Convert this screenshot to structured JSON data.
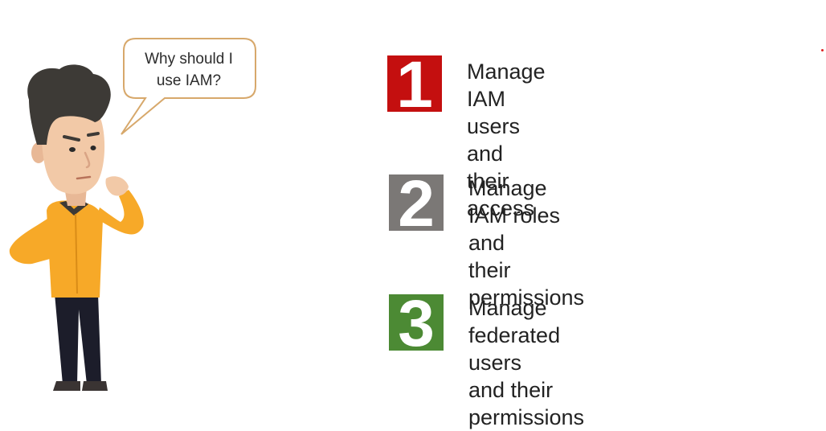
{
  "speech_bubble": {
    "line1": "Why should I",
    "line2": "use IAM?"
  },
  "items": [
    {
      "number": "1",
      "color": "#c40f0f",
      "line1": "Manage IAM users and",
      "line2": "their access"
    },
    {
      "number": "2",
      "color": "#7b7876",
      "line1": "Manage IAM roles and",
      "line2": "their permissions"
    },
    {
      "number": "3",
      "color": "#4c8a34",
      "line1": "Manage federated users",
      "line2": "and their permissions"
    }
  ],
  "colors": {
    "shirt": "#f7a928",
    "skin": "#f2c9a7",
    "hair": "#3d3a36",
    "pants": "#1c1d2a",
    "bubble_border": "#d7a86b"
  }
}
